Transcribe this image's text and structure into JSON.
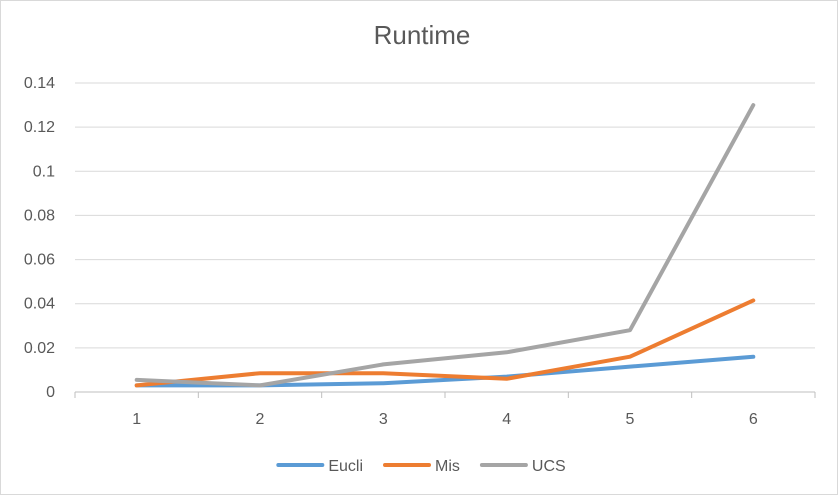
{
  "chart_data": {
    "type": "line",
    "title": "Runtime",
    "xlabel": "",
    "ylabel": "",
    "categories": [
      "1",
      "2",
      "3",
      "4",
      "5",
      "6"
    ],
    "ylim": [
      0,
      0.14
    ],
    "yticks": [
      "0",
      "0.02",
      "0.04",
      "0.06",
      "0.08",
      "0.1",
      "0.12",
      "0.14"
    ],
    "grid": true,
    "legend_position": "bottom",
    "series": [
      {
        "name": "Eucli",
        "color": "#5B9BD5",
        "values": [
          0.003,
          0.003,
          0.004,
          0.007,
          0.0115,
          0.016
        ]
      },
      {
        "name": "Mis",
        "color": "#ED7D31",
        "values": [
          0.003,
          0.0085,
          0.0085,
          0.006,
          0.016,
          0.0415
        ]
      },
      {
        "name": "UCS",
        "color": "#A5A5A5",
        "values": [
          0.0055,
          0.003,
          0.0125,
          0.018,
          0.028,
          0.13
        ]
      }
    ]
  }
}
